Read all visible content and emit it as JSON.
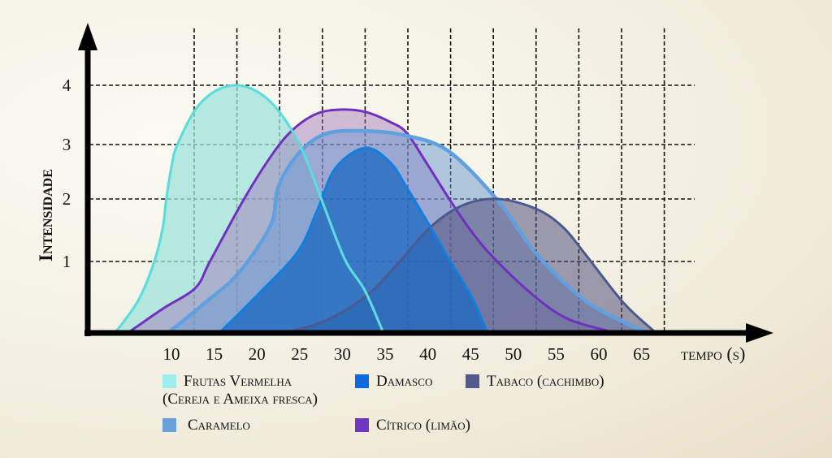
{
  "chart_data": {
    "type": "area",
    "title": "",
    "xlabel": "tempo (s)",
    "ylabel": "Intensidade",
    "x_ticks": [
      "10",
      "15",
      "20",
      "25",
      "30",
      "35",
      "40",
      "45",
      "50",
      "55",
      "60",
      "65"
    ],
    "y_ticks": [
      "1",
      "2",
      "3",
      "4"
    ],
    "xlim": [
      3,
      68
    ],
    "ylim": [
      0,
      4.5
    ],
    "grid": true,
    "legend_position": "bottom",
    "series": [
      {
        "name": "Frutas Vermelha (Cereja e Ameixa fresca)",
        "color": "#5ddcdc",
        "fill": "#9fe3dc",
        "points": [
          [
            3.4,
            0
          ],
          [
            6.1,
            0.45
          ],
          [
            8.0,
            1
          ],
          [
            9.0,
            1.55
          ],
          [
            9.4,
            2
          ],
          [
            10.1,
            2.67
          ],
          [
            10.7,
            3
          ],
          [
            12.8,
            3.59
          ],
          [
            15.1,
            3.9
          ],
          [
            17.7,
            4
          ],
          [
            20.4,
            3.86
          ],
          [
            22.8,
            3.52
          ],
          [
            25.3,
            2.9
          ],
          [
            27.7,
            1.94
          ],
          [
            30.3,
            1.03
          ],
          [
            32.6,
            0.6
          ],
          [
            34.8,
            0
          ]
        ]
      },
      {
        "name": "Cítrico (limão)",
        "color": "#7030c0",
        "fill": "#a070b8",
        "points": [
          [
            4.9,
            0
          ],
          [
            9.0,
            0.34
          ],
          [
            12.8,
            0.63
          ],
          [
            14.5,
            1
          ],
          [
            18.5,
            2
          ],
          [
            21.8,
            2.82
          ],
          [
            24.2,
            3.25
          ],
          [
            27.0,
            3.52
          ],
          [
            29.9,
            3.59
          ],
          [
            32.7,
            3.55
          ],
          [
            35.6,
            3.38
          ],
          [
            37.5,
            3.2
          ],
          [
            39.8,
            2.67
          ],
          [
            42.5,
            2
          ],
          [
            45.1,
            1.48
          ],
          [
            47.9,
            1.03
          ],
          [
            52.7,
            0.49
          ],
          [
            56.5,
            0.19
          ],
          [
            61.0,
            0.03
          ],
          [
            62.2,
            0
          ]
        ]
      },
      {
        "name": "Caramelo",
        "color": "#5fa0e0",
        "fill": "#6a98d0",
        "points": [
          [
            9.6,
            0
          ],
          [
            13.7,
            0.4
          ],
          [
            17.8,
            0.83
          ],
          [
            21.6,
            1.58
          ],
          [
            22.5,
            2.22
          ],
          [
            24.8,
            2.82
          ],
          [
            28.0,
            3.18
          ],
          [
            32.7,
            3.23
          ],
          [
            37.5,
            3.15
          ],
          [
            42.5,
            2.87
          ],
          [
            48.2,
            1.97
          ],
          [
            52.7,
            1.12
          ],
          [
            58.1,
            0.48
          ],
          [
            62.9,
            0.15
          ],
          [
            66.0,
            0
          ]
        ]
      },
      {
        "name": "Tabaco (cachimbo)",
        "color": "#4a5a90",
        "fill": "#52507e",
        "points": [
          [
            23.2,
            0
          ],
          [
            28.0,
            0.17
          ],
          [
            32.7,
            0.51
          ],
          [
            36.5,
            0.97
          ],
          [
            40.3,
            1.55
          ],
          [
            44.1,
            1.9
          ],
          [
            48.2,
            2
          ],
          [
            52.7,
            1.84
          ],
          [
            55.8,
            1.55
          ],
          [
            58.4,
            1.12
          ],
          [
            62.9,
            0.42
          ],
          [
            66.7,
            0
          ]
        ]
      },
      {
        "name": "Damasco",
        "color": "#1080e0",
        "fill": "#1a68c0",
        "points": [
          [
            15.6,
            0
          ],
          [
            20.4,
            0.57
          ],
          [
            24.8,
            1.16
          ],
          [
            27.0,
            1.8
          ],
          [
            29.2,
            2.57
          ],
          [
            32.7,
            2.94
          ],
          [
            35.6,
            2.67
          ],
          [
            37.5,
            2.22
          ],
          [
            40.3,
            1.55
          ],
          [
            42.5,
            1.03
          ],
          [
            45.1,
            0.51
          ],
          [
            47.0,
            0
          ]
        ]
      }
    ],
    "legend": [
      {
        "label": "Frutas Vermelha",
        "label2": "(Cereja e Ameixa fresca)",
        "color": "#9eeeee"
      },
      {
        "label": "Damasco",
        "color": "#0a6ade"
      },
      {
        "label": "Tabaco (cachimbo)",
        "color": "#505a90"
      },
      {
        "label": "Caramelo",
        "color": "#6aa0dc"
      },
      {
        "label": "Cítrico (limão)",
        "color": "#7038c0"
      }
    ]
  }
}
